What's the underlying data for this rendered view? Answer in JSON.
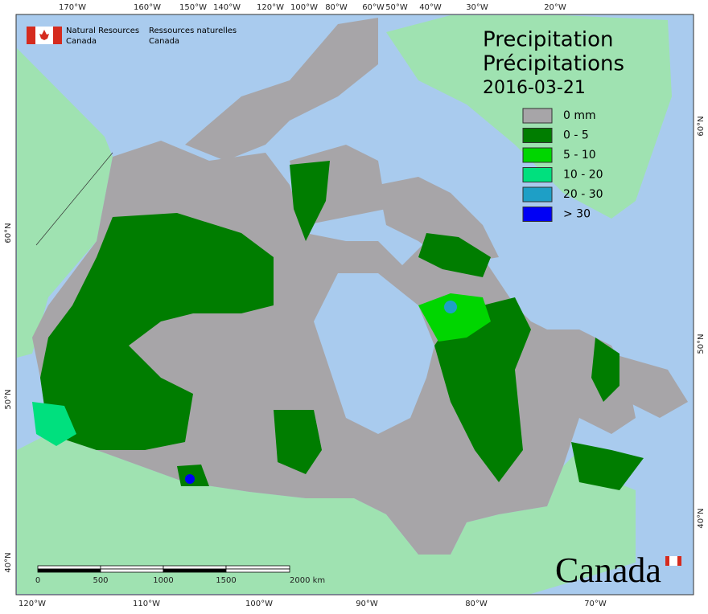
{
  "header": {
    "org_en": [
      "Natural Resources",
      "Canada"
    ],
    "org_fr": [
      "Ressources naturelles",
      "Canada"
    ]
  },
  "title": {
    "line1": "Precipitation",
    "line2": "Précipitations",
    "date": "2016-03-21"
  },
  "legend": [
    {
      "label": "0 mm",
      "color": "#a7a5a8"
    },
    {
      "label": "0 - 5",
      "color": "#007d00"
    },
    {
      "label": "5 - 10",
      "color": "#00d600"
    },
    {
      "label": "10 - 20",
      "color": "#00e07e"
    },
    {
      "label": "20 - 30",
      "color": "#1e9fc6"
    },
    {
      "label": "> 30",
      "color": "#0000f5"
    }
  ],
  "graticule": {
    "top": [
      "170°W",
      "160°W",
      "150°W",
      "140°W",
      "120°W",
      "100°W",
      "80°W",
      "60°W",
      "50°W",
      "40°W",
      "30°W",
      "20°W"
    ],
    "bottom": [
      "120°W",
      "110°W",
      "100°W",
      "90°W",
      "80°W",
      "70°W"
    ],
    "left": [
      "60°N",
      "50°N",
      "40°N"
    ],
    "right": [
      "60°N",
      "50°N",
      "40°N"
    ]
  },
  "scale_bar": [
    "0",
    "500",
    "1000",
    "1500",
    "2000  km"
  ],
  "wordmark": "Canada"
}
